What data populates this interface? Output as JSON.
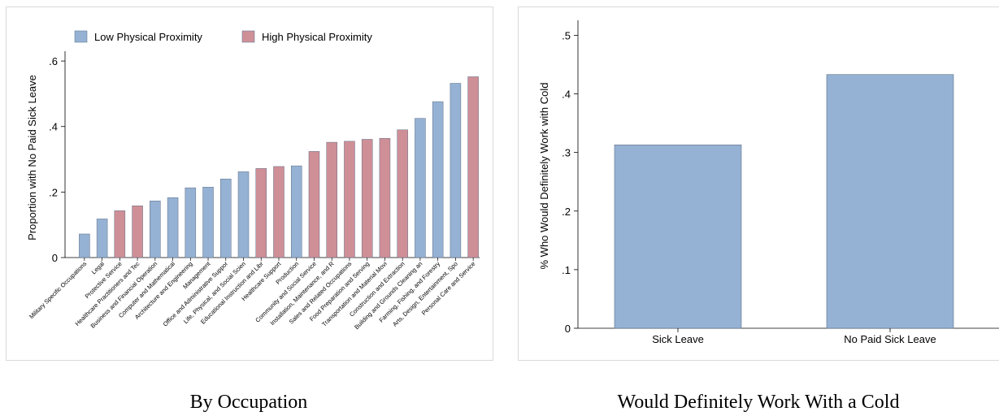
{
  "chart_data": [
    {
      "type": "bar",
      "caption": "By Occupation",
      "ylabel": "Proportion with No Paid Sick Leave",
      "xlabel": "",
      "ylim": [
        0,
        0.63
      ],
      "yticks": [
        0,
        0.2,
        0.4,
        0.6
      ],
      "ytick_labels": [
        "0",
        ".2",
        ".4",
        ".6"
      ],
      "legend": {
        "position": "top",
        "entries": [
          {
            "name": "Low Physical Proximity",
            "color": "#95b1d3"
          },
          {
            "name": "High Physical Proximity",
            "color": "#cf8f97"
          }
        ]
      },
      "series": [
        {
          "name": "Low Physical Proximity",
          "color": "#95b1d3"
        },
        {
          "name": "High Physical Proximity",
          "color": "#cf8f97"
        }
      ],
      "categories": [
        "Military Specific Occupations",
        "Legal",
        "Protective Service",
        "Healthcare Practitioners and Tec",
        "Business and Financial Operation",
        "Computer and Mathematical",
        "Architecture and Engineering",
        "Management",
        "Office and Administrative Suppor",
        "Life, Physical, and Social Scien",
        "Educational Instruction and Libr",
        "Healthcare Support",
        "Production",
        "Community and Social Service",
        "Installation, Maintenance, and R",
        "Sales and Related Occupations",
        "Food Preparation and Serving",
        "Transportation and Material Movi",
        "Construction and Extraction",
        "Building and Grounds Cleaning an",
        "Farming, Fishing, and Forestry",
        "Arts, Design, Entertainment, Spo",
        "Personal Care and Service"
      ],
      "values": [
        0.072,
        0.118,
        0.143,
        0.158,
        0.173,
        0.183,
        0.213,
        0.215,
        0.24,
        0.262,
        0.272,
        0.278,
        0.28,
        0.324,
        0.352,
        0.355,
        0.361,
        0.364,
        0.39,
        0.425,
        0.476,
        0.532,
        0.552
      ],
      "groups": [
        "Low Physical Proximity",
        "Low Physical Proximity",
        "High Physical Proximity",
        "High Physical Proximity",
        "Low Physical Proximity",
        "Low Physical Proximity",
        "Low Physical Proximity",
        "Low Physical Proximity",
        "Low Physical Proximity",
        "Low Physical Proximity",
        "High Physical Proximity",
        "High Physical Proximity",
        "Low Physical Proximity",
        "High Physical Proximity",
        "High Physical Proximity",
        "High Physical Proximity",
        "High Physical Proximity",
        "High Physical Proximity",
        "High Physical Proximity",
        "Low Physical Proximity",
        "Low Physical Proximity",
        "Low Physical Proximity",
        "High Physical Proximity"
      ],
      "grid": false
    },
    {
      "type": "bar",
      "caption": "Would Definitely Work With a Cold",
      "ylabel": "% Who Would Definitely Work with Cold",
      "xlabel": "",
      "ylim": [
        0,
        0.52
      ],
      "yticks": [
        0,
        0.1,
        0.2,
        0.3,
        0.4,
        0.5
      ],
      "ytick_labels": [
        "0",
        ".1",
        ".2",
        ".3",
        ".4",
        ".5"
      ],
      "categories": [
        "Sick Leave",
        "No Paid Sick Leave"
      ],
      "values": [
        0.313,
        0.433
      ],
      "color": "#95b1d3",
      "grid": false
    }
  ]
}
